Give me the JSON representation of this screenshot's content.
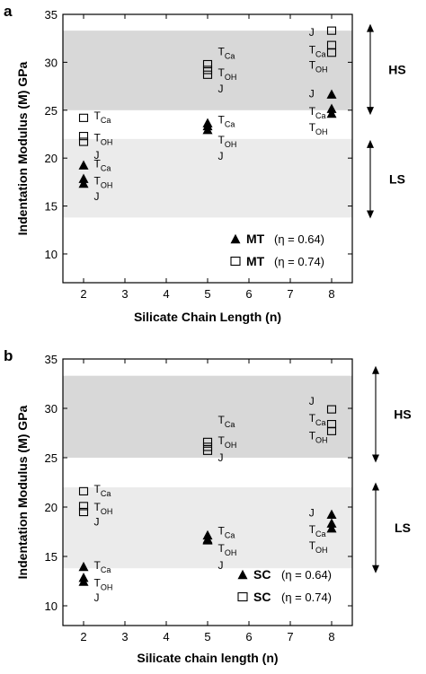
{
  "chart_data": [
    {
      "panel_label": "a",
      "type": "scatter",
      "title": "",
      "xlabel": "Silicate Chain Length (n)",
      "ylabel": "Indentation Modulus (M) GPa",
      "xlim": [
        1.5,
        8.5
      ],
      "ylim": [
        7,
        35
      ],
      "xticks": [
        "2",
        "3",
        "4",
        "5",
        "6",
        "7",
        "8"
      ],
      "yticks": [
        "10",
        "15",
        "20",
        "25",
        "30",
        "35"
      ],
      "grid": false,
      "legend_position": "bottom-right",
      "bands": [
        {
          "name": "HS",
          "from": 25,
          "to": 33.3,
          "color": "#d8d8d8"
        },
        {
          "name": "LS",
          "from": 13.8,
          "to": 22,
          "color": "#ebebeb"
        }
      ],
      "range_arrows": [
        {
          "label": "HS",
          "from": 24.5,
          "to": 34
        },
        {
          "label": "LS",
          "from": 13.7,
          "to": 21.9
        }
      ],
      "series": [
        {
          "name": "MT",
          "eta": "(η = 0.64)",
          "marker": "filled-triangle",
          "x": [
            2,
            2,
            2,
            5,
            5,
            5,
            8,
            8,
            8
          ],
          "y": [
            19.2,
            17.8,
            17.3,
            23.6,
            23.3,
            22.9,
            26.6,
            25.1,
            24.6
          ]
        },
        {
          "name": "MT",
          "eta": "(η = 0.74)",
          "marker": "open-square",
          "x": [
            2,
            2,
            2,
            5,
            5,
            5,
            8,
            8,
            8
          ],
          "y": [
            24.2,
            22.3,
            21.7,
            29.8,
            29.2,
            28.7,
            33.3,
            31.8,
            31
          ]
        }
      ],
      "annotations": [
        {
          "x": 2.25,
          "y": 24.5,
          "base": "T",
          "sub": "Ca"
        },
        {
          "x": 2.25,
          "y": 22.2,
          "base": "T",
          "sub": "OH"
        },
        {
          "x": 2.25,
          "y": 20.4,
          "base": "J",
          "sub": ""
        },
        {
          "x": 2.25,
          "y": 19.5,
          "base": "T",
          "sub": "Ca"
        },
        {
          "x": 2.25,
          "y": 17.7,
          "base": "T",
          "sub": "OH"
        },
        {
          "x": 2.25,
          "y": 16.1,
          "base": "J",
          "sub": ""
        },
        {
          "x": 5.25,
          "y": 31.2,
          "base": "T",
          "sub": "Ca"
        },
        {
          "x": 5.25,
          "y": 29,
          "base": "T",
          "sub": "OH"
        },
        {
          "x": 5.25,
          "y": 27.3,
          "base": "J",
          "sub": ""
        },
        {
          "x": 5.25,
          "y": 24.1,
          "base": "T",
          "sub": "Ca"
        },
        {
          "x": 5.25,
          "y": 22,
          "base": "T",
          "sub": "OH"
        },
        {
          "x": 5.25,
          "y": 20.3,
          "base": "J",
          "sub": ""
        },
        {
          "x": 7.45,
          "y": 33.2,
          "base": "J",
          "sub": ""
        },
        {
          "x": 7.45,
          "y": 31.4,
          "base": "T",
          "sub": "Ca"
        },
        {
          "x": 7.45,
          "y": 29.8,
          "base": "T",
          "sub": "OH"
        },
        {
          "x": 7.45,
          "y": 26.8,
          "base": "J",
          "sub": ""
        },
        {
          "x": 7.45,
          "y": 25,
          "base": "T",
          "sub": "Ca"
        },
        {
          "x": 7.45,
          "y": 23.3,
          "base": "T",
          "sub": "OH"
        }
      ]
    },
    {
      "panel_label": "b",
      "type": "scatter",
      "title": "",
      "xlabel": "Silicate chain length (n)",
      "ylabel": "Indentation Modulus (M) GPa",
      "xlim": [
        1.5,
        8.5
      ],
      "ylim": [
        8,
        35
      ],
      "xticks": [
        "2",
        "3",
        "4",
        "5",
        "6",
        "7",
        "8"
      ],
      "yticks": [
        "10",
        "15",
        "20",
        "25",
        "30",
        "35"
      ],
      "grid": false,
      "legend_position": "bottom-right",
      "bands": [
        {
          "name": "HS",
          "from": 25,
          "to": 33.3,
          "color": "#d8d8d8"
        },
        {
          "name": "LS",
          "from": 13.8,
          "to": 22,
          "color": "#ebebeb"
        }
      ],
      "range_arrows": [
        {
          "label": "HS",
          "from": 24.5,
          "to": 34.3
        },
        {
          "label": "LS",
          "from": 13.3,
          "to": 22.5
        }
      ],
      "series": [
        {
          "name": "SC",
          "eta": "(η = 0.64)",
          "marker": "filled-triangle",
          "x": [
            2,
            2,
            2,
            5,
            5,
            5,
            8,
            8,
            8
          ],
          "y": [
            13.9,
            12.8,
            12.4,
            17.1,
            16.7,
            16.6,
            19.2,
            18.3,
            17.8
          ]
        },
        {
          "name": "SC",
          "eta": "(η = 0.74)",
          "marker": "open-square",
          "x": [
            2,
            2,
            2,
            5,
            5,
            5,
            8,
            8,
            8
          ],
          "y": [
            21.6,
            20.1,
            19.5,
            26.6,
            26.1,
            25.7,
            29.9,
            28.4,
            27.7
          ]
        }
      ],
      "annotations": [
        {
          "x": 2.25,
          "y": 21.9,
          "base": "T",
          "sub": "Ca"
        },
        {
          "x": 2.25,
          "y": 20.1,
          "base": "T",
          "sub": "OH"
        },
        {
          "x": 2.25,
          "y": 18.6,
          "base": "J",
          "sub": ""
        },
        {
          "x": 2.25,
          "y": 14.2,
          "base": "T",
          "sub": "Ca"
        },
        {
          "x": 2.25,
          "y": 12.4,
          "base": "T",
          "sub": "OH"
        },
        {
          "x": 2.25,
          "y": 10.9,
          "base": "J",
          "sub": ""
        },
        {
          "x": 5.25,
          "y": 28.9,
          "base": "T",
          "sub": "Ca"
        },
        {
          "x": 5.25,
          "y": 26.8,
          "base": "T",
          "sub": "OH"
        },
        {
          "x": 5.25,
          "y": 25.1,
          "base": "J",
          "sub": ""
        },
        {
          "x": 5.25,
          "y": 17.7,
          "base": "T",
          "sub": "Ca"
        },
        {
          "x": 5.25,
          "y": 15.9,
          "base": "T",
          "sub": "OH"
        },
        {
          "x": 5.25,
          "y": 14.2,
          "base": "J",
          "sub": ""
        },
        {
          "x": 7.45,
          "y": 30.8,
          "base": "J",
          "sub": ""
        },
        {
          "x": 7.45,
          "y": 29.1,
          "base": "T",
          "sub": "Ca"
        },
        {
          "x": 7.45,
          "y": 27.3,
          "base": "T",
          "sub": "OH"
        },
        {
          "x": 7.45,
          "y": 19.5,
          "base": "J",
          "sub": ""
        },
        {
          "x": 7.45,
          "y": 17.8,
          "base": "T",
          "sub": "Ca"
        },
        {
          "x": 7.45,
          "y": 16.2,
          "base": "T",
          "sub": "OH"
        }
      ]
    }
  ]
}
